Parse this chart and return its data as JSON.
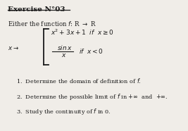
{
  "title": "Exercise N°03",
  "bg_color": "#f0ede8",
  "text_color": "#1a1a1a",
  "intro_line": "Either the function f: R → R",
  "items": [
    "1.  Determine the domain of definition of $f$.",
    "2.  Determine the possible limit of $f$ in $+\\infty$  and  $+\\infty$.",
    "3.  Study the continuity of $f$ in 0."
  ],
  "figsize": [
    2.67,
    1.86
  ],
  "dpi": 100
}
